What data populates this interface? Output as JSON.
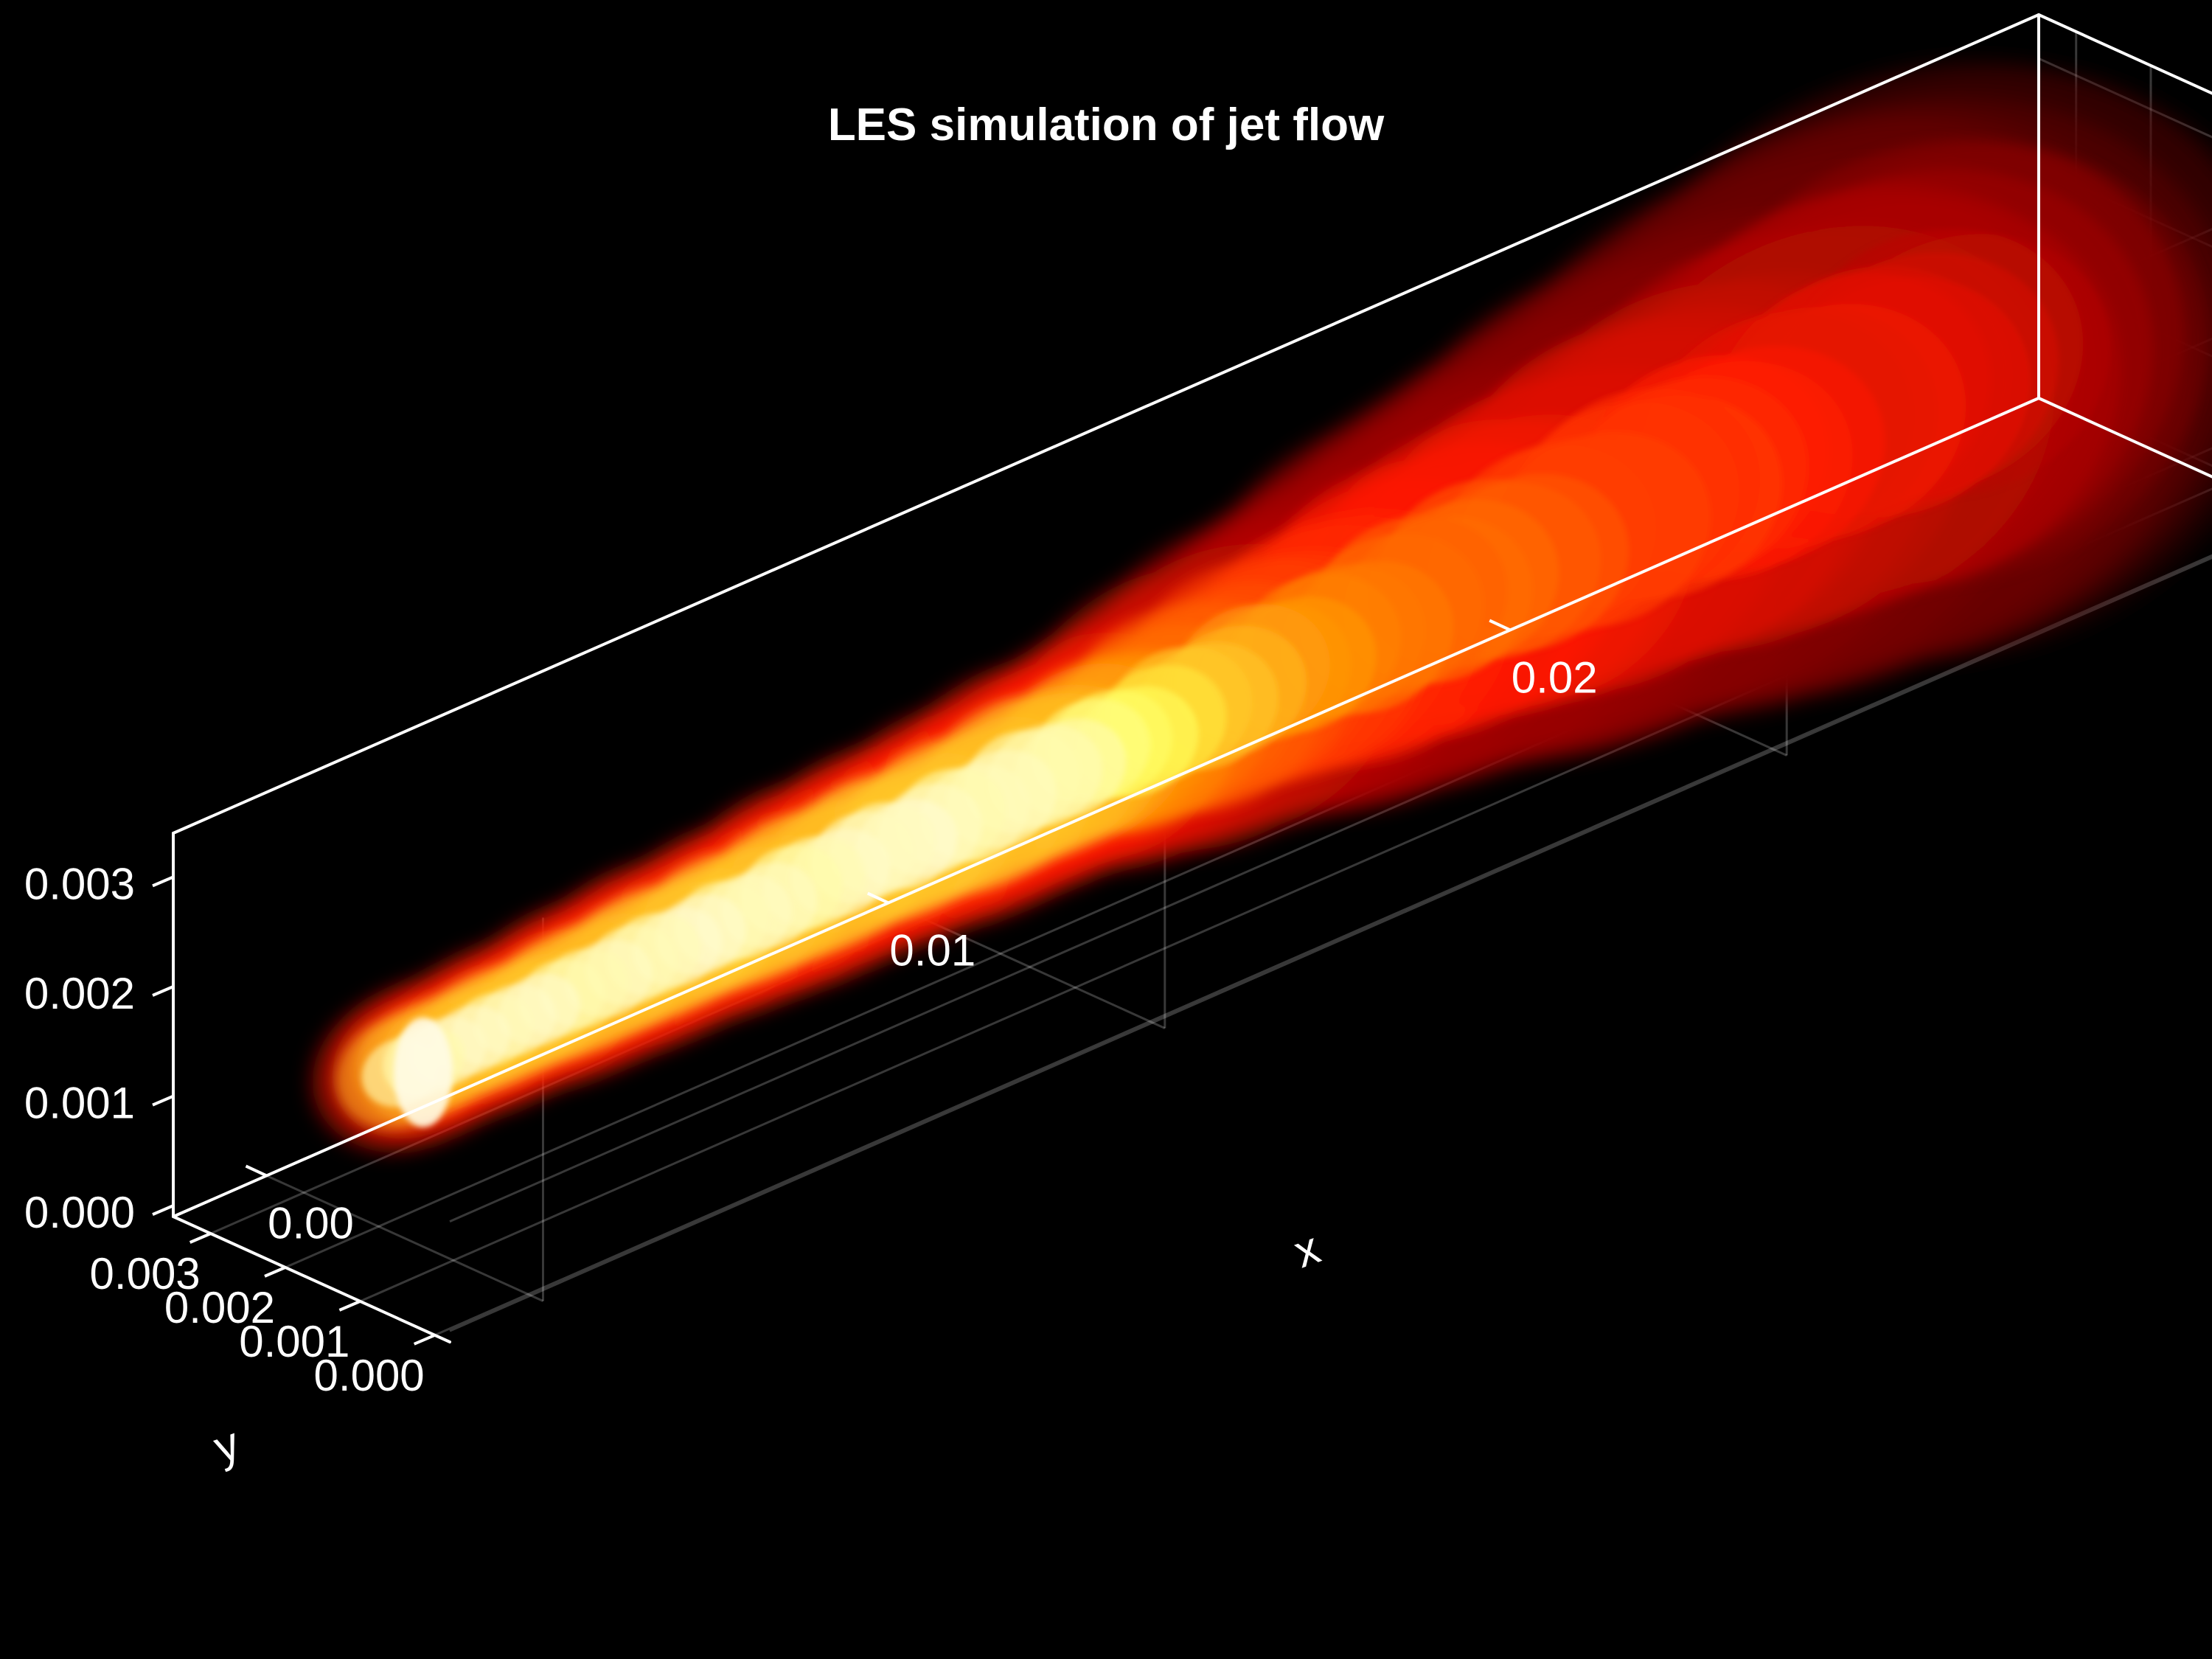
{
  "chart_data": {
    "type": "volume-3d",
    "title": "LES simulation of jet flow",
    "xlabel": "x",
    "ylabel": "y",
    "zlabel": "",
    "x_ticks": [
      {
        "value": 0.0,
        "label": "0.00"
      },
      {
        "value": 0.01,
        "label": "0.01"
      },
      {
        "value": 0.02,
        "label": "0.02"
      }
    ],
    "y_ticks": [
      {
        "value": 0.0,
        "label": "0.000"
      },
      {
        "value": 0.001,
        "label": "0.001"
      },
      {
        "value": 0.002,
        "label": "0.002"
      },
      {
        "value": 0.003,
        "label": "0.003"
      }
    ],
    "z_ticks": [
      {
        "value": 0.0,
        "label": "0.000"
      },
      {
        "value": 0.001,
        "label": "0.001"
      },
      {
        "value": 0.002,
        "label": "0.002"
      },
      {
        "value": 0.003,
        "label": "0.003"
      }
    ],
    "xlim": [
      -0.0015,
      0.0285
    ],
    "ylim": [
      -0.0002,
      0.0035
    ],
    "zlim": [
      -0.0001,
      0.0034
    ],
    "grid": true,
    "background": "#000000",
    "axis_color": "#ffffff",
    "colormap": "hot",
    "colormap_stops": [
      "#000000",
      "#8b0000",
      "#ff1a00",
      "#ff8c00",
      "#ffff4d",
      "#fffbe6"
    ],
    "jet": {
      "inlet_x": 0.0,
      "inlet_y": 0.0017,
      "inlet_z": 0.0014,
      "inlet_radius": 0.0005,
      "core_end_x": 0.011,
      "outlet_x": 0.0255,
      "outlet_radius": 0.0018
    }
  }
}
